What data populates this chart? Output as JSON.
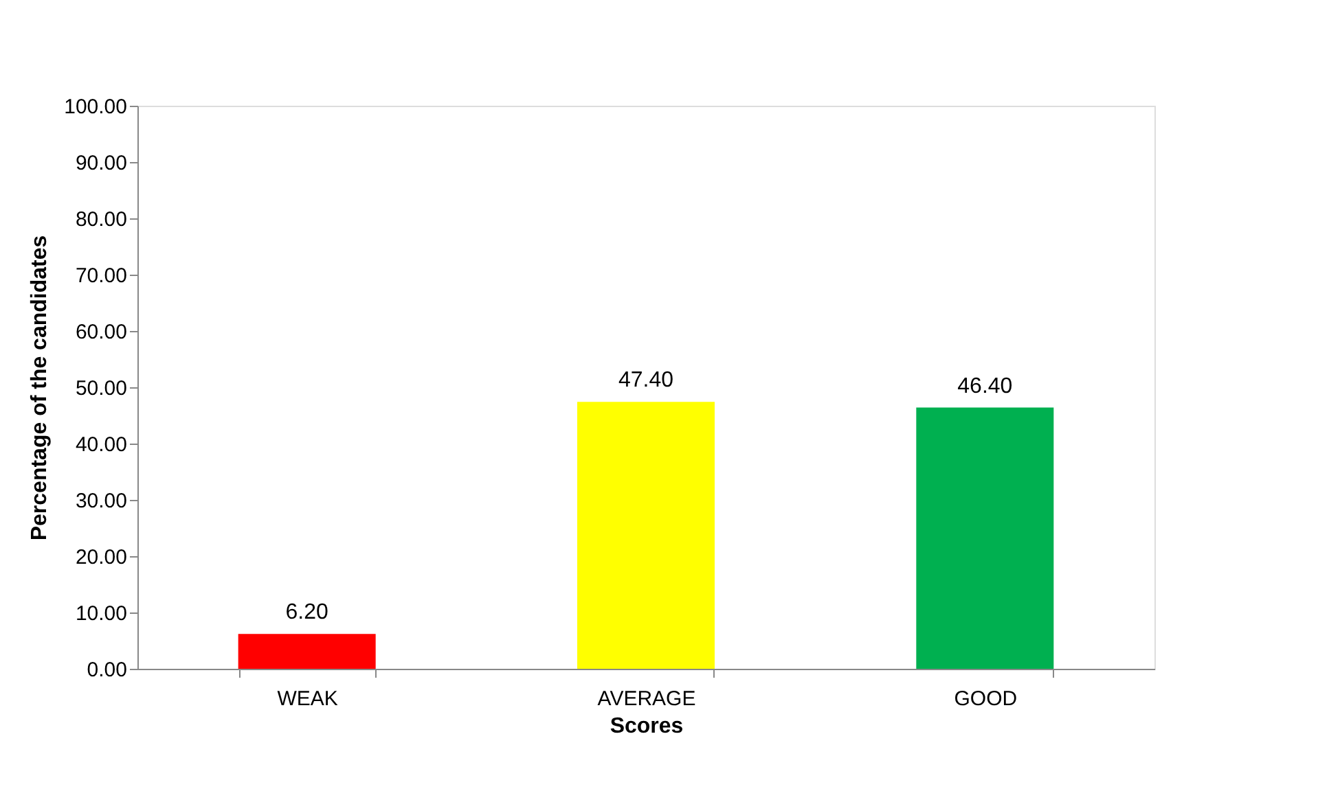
{
  "chart_data": {
    "type": "bar",
    "xlabel": "Scores",
    "ylabel": "Percentage of the candidates",
    "categories": [
      "WEAK",
      "AVERAGE",
      "GOOD"
    ],
    "values": [
      6.2,
      47.4,
      46.4
    ],
    "colors": [
      "#ff0000",
      "#ffff00",
      "#00b050"
    ],
    "value_labels": [
      "6.20",
      "47.40",
      "46.40"
    ],
    "ylim": [
      0,
      100
    ],
    "yticks": [
      {
        "value": 0,
        "label": "0.00"
      },
      {
        "value": 10,
        "label": "10.00"
      },
      {
        "value": 20,
        "label": "20.00"
      },
      {
        "value": 30,
        "label": "30.00"
      },
      {
        "value": 40,
        "label": "40.00"
      },
      {
        "value": 50,
        "label": "50.00"
      },
      {
        "value": 60,
        "label": "60.00"
      },
      {
        "value": 70,
        "label": "70.00"
      },
      {
        "value": 80,
        "label": "80.00"
      },
      {
        "value": 90,
        "label": "90.00"
      },
      {
        "value": 100,
        "label": "100.00"
      }
    ],
    "grid": false
  }
}
